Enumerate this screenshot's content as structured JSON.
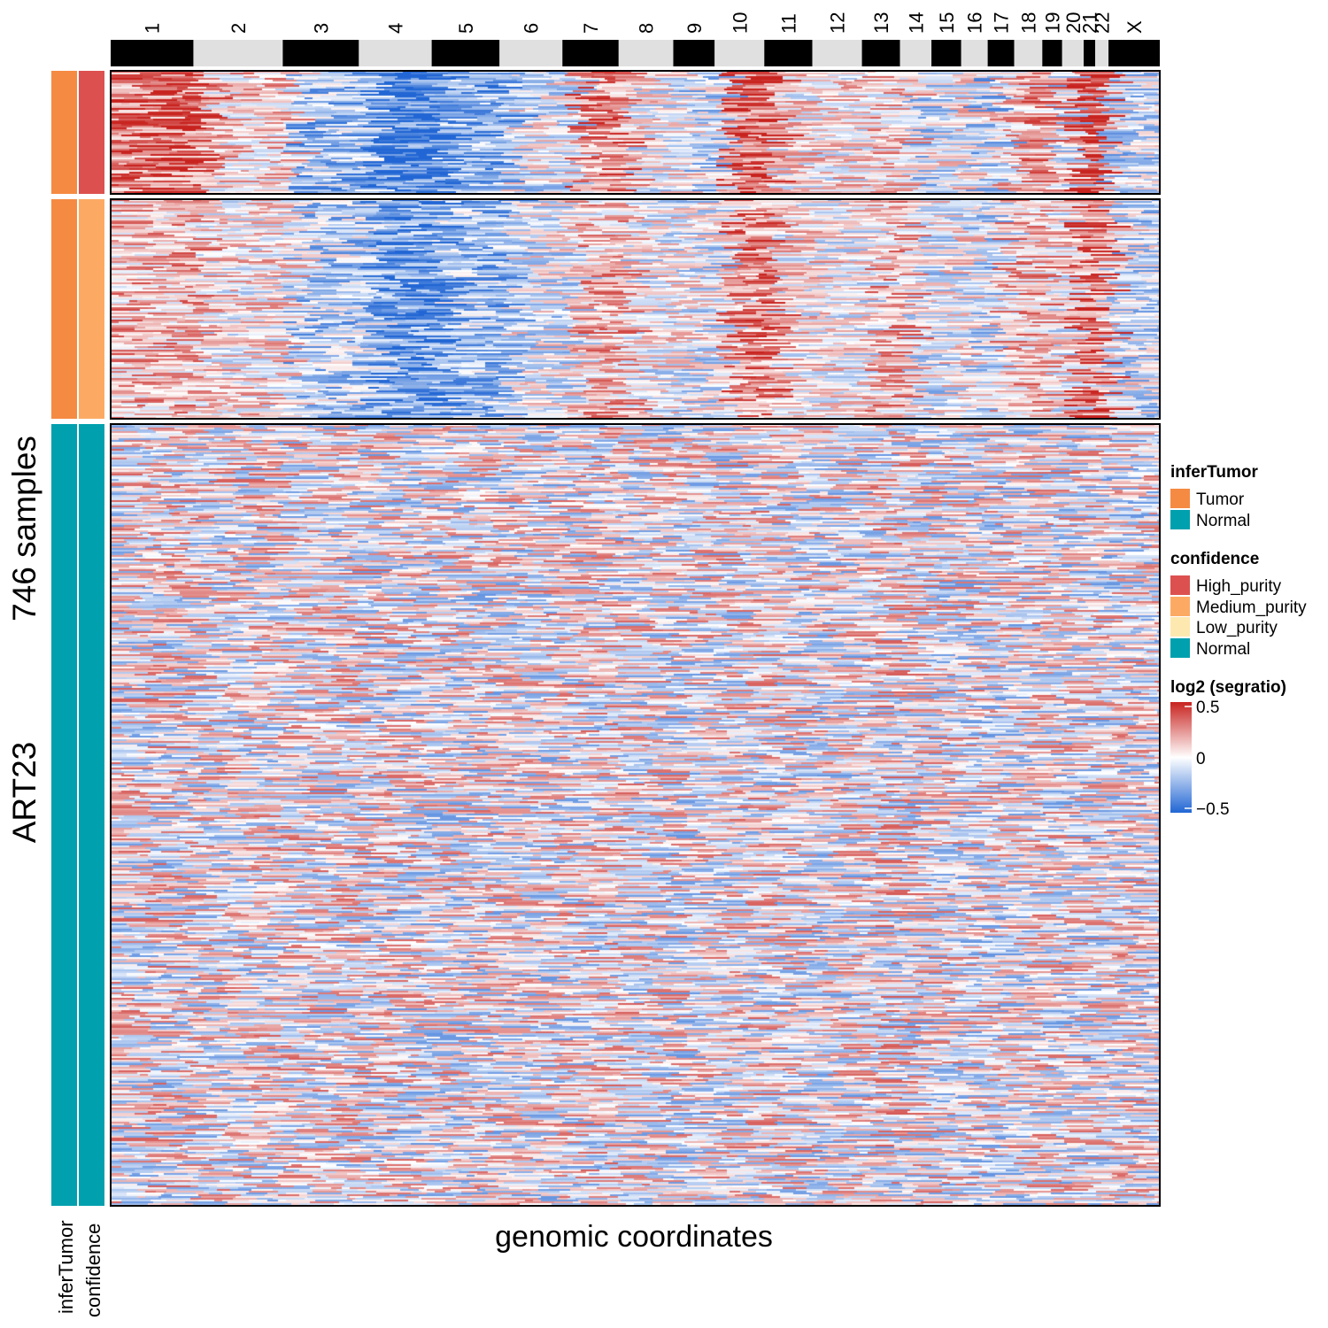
{
  "chart_data": {
    "type": "heatmap",
    "sample_label": "746 samples",
    "dataset_label": "ART23",
    "xlabel": "genomic coordinates",
    "chromosomes": [
      {
        "name": "1",
        "size": 5.0
      },
      {
        "name": "2",
        "size": 5.4
      },
      {
        "name": "3",
        "size": 4.6
      },
      {
        "name": "4",
        "size": 4.4
      },
      {
        "name": "5",
        "size": 4.1
      },
      {
        "name": "6",
        "size": 3.8
      },
      {
        "name": "7",
        "size": 3.4
      },
      {
        "name": "8",
        "size": 3.3
      },
      {
        "name": "9",
        "size": 2.5
      },
      {
        "name": "10",
        "size": 3.0
      },
      {
        "name": "11",
        "size": 2.9
      },
      {
        "name": "12",
        "size": 3.0
      },
      {
        "name": "13",
        "size": 2.3
      },
      {
        "name": "14",
        "size": 1.9
      },
      {
        "name": "15",
        "size": 1.8
      },
      {
        "name": "16",
        "size": 1.6
      },
      {
        "name": "17",
        "size": 1.6
      },
      {
        "name": "18",
        "size": 1.7
      },
      {
        "name": "19",
        "size": 1.2
      },
      {
        "name": "20",
        "size": 1.3
      },
      {
        "name": "21",
        "size": 0.7
      },
      {
        "name": "22",
        "size": 0.8
      },
      {
        "name": "X",
        "size": 3.1
      }
    ],
    "groups": [
      {
        "inferTumor": "Tumor",
        "confidence": "High_purity",
        "relative_rows": 1.0
      },
      {
        "inferTumor": "Tumor",
        "confidence": "Medium_purity",
        "relative_rows": 1.82
      },
      {
        "inferTumor": "Normal",
        "confidence": "Normal",
        "relative_rows": 6.4
      }
    ],
    "chromosome_mean_log2": [
      {
        "group": "High_purity",
        "values": [
          0.3,
          0.1,
          -0.2,
          -0.4,
          -0.25,
          -0.05,
          0.25,
          0.0,
          -0.1,
          0.35,
          0.05,
          0.05,
          0.1,
          -0.1,
          0.0,
          -0.15,
          0.1,
          0.2,
          -0.05,
          0.45,
          0.4,
          -0.1,
          -0.1
        ]
      },
      {
        "group": "Medium_purity",
        "values": [
          0.15,
          0.05,
          -0.15,
          -0.3,
          -0.2,
          -0.05,
          0.15,
          0.0,
          -0.05,
          0.25,
          0.05,
          0.0,
          0.15,
          -0.05,
          0.0,
          -0.1,
          0.15,
          0.15,
          0.0,
          0.3,
          0.3,
          -0.05,
          -0.1
        ]
      },
      {
        "group": "Normal",
        "values": [
          0.02,
          0.02,
          0.02,
          0.0,
          0.0,
          0.0,
          0.02,
          0.0,
          0.0,
          0.02,
          0.0,
          0.0,
          0.03,
          0.0,
          0.0,
          0.0,
          0.0,
          0.02,
          0.0,
          0.0,
          0.0,
          0.0,
          0.0
        ]
      }
    ],
    "color_scale": {
      "min": -0.5,
      "mid": 0,
      "max": 0.5,
      "low_color": "#2166d4",
      "mid_color": "#ffffff",
      "high_color": "#c8231f"
    },
    "chromosome_bar_colors": [
      "#000000",
      "#e0e0e0"
    ]
  },
  "annotations": {
    "names": [
      "inferTumor",
      "confidence"
    ],
    "colors": {
      "Tumor": "#f58a42",
      "Normal": "#00a0ae",
      "High_purity": "#dc514f",
      "Medium_purity": "#fcaa63",
      "Low_purity": "#fde9b0"
    }
  },
  "legend": {
    "inferTumor": {
      "title": "inferTumor",
      "items": [
        {
          "label": "Tumor",
          "color": "#f58a42"
        },
        {
          "label": "Normal",
          "color": "#00a0ae"
        }
      ]
    },
    "confidence": {
      "title": "confidence",
      "items": [
        {
          "label": "High_purity",
          "color": "#dc514f"
        },
        {
          "label": "Medium_purity",
          "color": "#fcaa63"
        },
        {
          "label": "Low_purity",
          "color": "#fde9b0"
        },
        {
          "label": "Normal",
          "color": "#00a0ae"
        }
      ]
    },
    "colorbar": {
      "title": "log2 (segratio)",
      "ticks": [
        "0.5",
        "0",
        "−0.5"
      ]
    }
  }
}
